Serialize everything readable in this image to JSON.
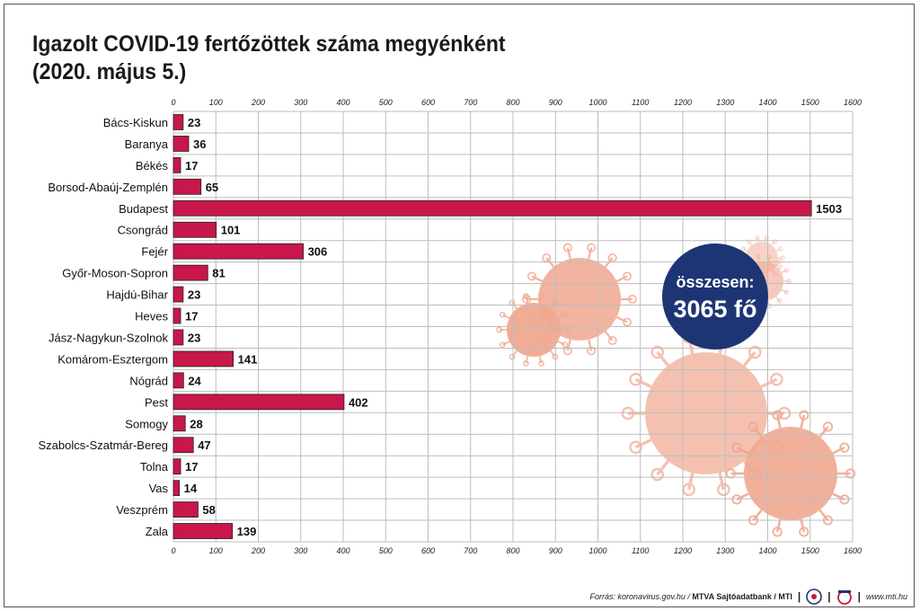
{
  "title_line1": "Igazolt COVID-19 fertőzöttek száma megyénként",
  "title_line2": "(2020. május 5.)",
  "total_label": "összesen:",
  "total_value": "3065 fő",
  "footer": {
    "source_prefix": "Forrás: koronavirus.gov.hu / ",
    "source_bold": "MTVA Sajtóadatbank / MTI",
    "website": "www.mti.hu"
  },
  "colors": {
    "bar": "#c8174a",
    "total_circle": "#1d3574",
    "virus": "#f0a890"
  },
  "chart_data": {
    "type": "bar",
    "orientation": "horizontal",
    "categories": [
      "Bács-Kiskun",
      "Baranya",
      "Békés",
      "Borsod-Abaúj-Zemplén",
      "Budapest",
      "Csongrád",
      "Fejér",
      "Győr-Moson-Sopron",
      "Hajdú-Bihar",
      "Heves",
      "Jász-Nagykun-Szolnok",
      "Komárom-Esztergom",
      "Nógrád",
      "Pest",
      "Somogy",
      "Szabolcs-Szatmár-Bereg",
      "Tolna",
      "Vas",
      "Veszprém",
      "Zala"
    ],
    "values": [
      23,
      36,
      17,
      65,
      1503,
      101,
      306,
      81,
      23,
      17,
      23,
      141,
      24,
      402,
      28,
      47,
      17,
      14,
      58,
      139
    ],
    "xlim": [
      0,
      1600
    ],
    "xticks": [
      0,
      100,
      200,
      300,
      400,
      500,
      600,
      700,
      800,
      900,
      1000,
      1100,
      1200,
      1300,
      1400,
      1500,
      1600
    ],
    "grid": true,
    "title": "Igazolt COVID-19 fertőzöttek száma megyénként",
    "subtitle": "(2020. május 5.)"
  }
}
